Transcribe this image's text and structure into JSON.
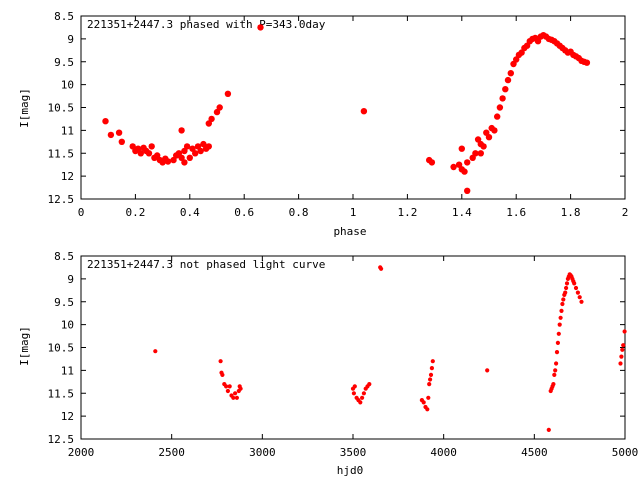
{
  "chart_data": [
    {
      "type": "scatter",
      "title": "221351+2447.3 phased with P=343.0day",
      "xlabel": "phase",
      "ylabel": "I[mag]",
      "xlim": [
        0,
        2
      ],
      "ylim": [
        12.5,
        8.5
      ],
      "y_inverted": true,
      "xticks": [
        "0",
        "0.2",
        "0.4",
        "0.6",
        "0.8",
        "1",
        "1.2",
        "1.4",
        "1.6",
        "1.8",
        "2"
      ],
      "yticks": [
        "8.5",
        "9",
        "9.5",
        "10",
        "10.5",
        "11",
        "11.5",
        "12",
        "12.5"
      ],
      "grid": false,
      "marker_color": "#ff0000",
      "series": [
        {
          "points": [
            [
              0.09,
              10.8
            ],
            [
              0.11,
              11.1
            ],
            [
              0.14,
              11.05
            ],
            [
              0.15,
              11.25
            ],
            [
              0.19,
              11.35
            ],
            [
              0.2,
              11.45
            ],
            [
              0.21,
              11.4
            ],
            [
              0.22,
              11.5
            ],
            [
              0.23,
              11.38
            ],
            [
              0.24,
              11.45
            ],
            [
              0.25,
              11.5
            ],
            [
              0.26,
              11.35
            ],
            [
              0.27,
              11.6
            ],
            [
              0.28,
              11.55
            ],
            [
              0.29,
              11.65
            ],
            [
              0.3,
              11.7
            ],
            [
              0.31,
              11.62
            ],
            [
              0.32,
              11.68
            ],
            [
              0.34,
              11.65
            ],
            [
              0.35,
              11.55
            ],
            [
              0.36,
              11.5
            ],
            [
              0.37,
              11.6
            ],
            [
              0.37,
              11.0
            ],
            [
              0.38,
              11.45
            ],
            [
              0.38,
              11.7
            ],
            [
              0.39,
              11.35
            ],
            [
              0.4,
              11.6
            ],
            [
              0.41,
              11.4
            ],
            [
              0.42,
              11.5
            ],
            [
              0.43,
              11.35
            ],
            [
              0.44,
              11.45
            ],
            [
              0.45,
              11.3
            ],
            [
              0.46,
              11.4
            ],
            [
              0.47,
              11.35
            ],
            [
              0.47,
              10.85
            ],
            [
              0.48,
              10.75
            ],
            [
              0.5,
              10.6
            ],
            [
              0.51,
              10.5
            ],
            [
              0.54,
              10.2
            ],
            [
              1.04,
              10.58
            ],
            [
              1.28,
              11.65
            ],
            [
              1.29,
              11.7
            ],
            [
              1.37,
              11.8
            ],
            [
              1.39,
              11.75
            ],
            [
              1.4,
              11.85
            ],
            [
              1.4,
              11.4
            ],
            [
              1.41,
              11.9
            ],
            [
              1.42,
              11.7
            ],
            [
              1.42,
              12.32
            ],
            [
              1.44,
              11.6
            ],
            [
              1.45,
              11.5
            ],
            [
              1.46,
              11.2
            ],
            [
              1.47,
              11.3
            ],
            [
              1.47,
              11.5
            ],
            [
              1.48,
              11.35
            ],
            [
              1.49,
              11.05
            ],
            [
              1.5,
              11.15
            ],
            [
              1.51,
              10.95
            ],
            [
              1.52,
              11.0
            ],
            [
              1.53,
              10.7
            ],
            [
              1.54,
              10.5
            ],
            [
              1.55,
              10.3
            ],
            [
              1.56,
              10.1
            ],
            [
              1.57,
              9.9
            ],
            [
              1.58,
              9.75
            ],
            [
              1.59,
              9.55
            ],
            [
              1.6,
              9.45
            ],
            [
              1.61,
              9.35
            ],
            [
              1.62,
              9.3
            ],
            [
              1.63,
              9.2
            ],
            [
              1.64,
              9.15
            ],
            [
              1.65,
              9.05
            ],
            [
              1.66,
              9.0
            ],
            [
              1.67,
              8.98
            ],
            [
              1.68,
              9.05
            ],
            [
              1.69,
              8.95
            ],
            [
              1.7,
              8.92
            ],
            [
              1.71,
              8.95
            ],
            [
              1.72,
              9.0
            ],
            [
              1.73,
              9.02
            ],
            [
              1.74,
              9.05
            ],
            [
              1.75,
              9.1
            ],
            [
              1.76,
              9.15
            ],
            [
              1.77,
              9.2
            ],
            [
              1.78,
              9.25
            ],
            [
              1.79,
              9.3
            ],
            [
              1.8,
              9.28
            ],
            [
              1.81,
              9.35
            ],
            [
              1.82,
              9.38
            ],
            [
              1.83,
              9.42
            ],
            [
              1.84,
              9.48
            ],
            [
              1.85,
              9.5
            ],
            [
              1.86,
              9.52
            ]
          ]
        }
      ],
      "legend_marker_point": [
        0.66,
        8.75
      ]
    },
    {
      "type": "scatter",
      "title": "221351+2447.3 not phased light curve",
      "xlabel": "hjd0",
      "ylabel": "I[mag]",
      "xlim": [
        2000,
        5000
      ],
      "ylim": [
        12.5,
        8.5
      ],
      "y_inverted": true,
      "xticks": [
        "2000",
        "2500",
        "3000",
        "3500",
        "4000",
        "4500",
        "5000"
      ],
      "yticks": [
        "8.5",
        "9",
        "9.5",
        "10",
        "10.5",
        "11",
        "11.5",
        "12",
        "12.5"
      ],
      "grid": false,
      "marker_color": "#ff0000",
      "series": [
        {
          "points": [
            [
              2410,
              10.58
            ],
            [
              2770,
              10.8
            ],
            [
              2775,
              11.05
            ],
            [
              2780,
              11.1
            ],
            [
              2790,
              11.3
            ],
            [
              2800,
              11.35
            ],
            [
              2810,
              11.45
            ],
            [
              2820,
              11.35
            ],
            [
              2830,
              11.55
            ],
            [
              2840,
              11.6
            ],
            [
              2850,
              11.5
            ],
            [
              2860,
              11.6
            ],
            [
              2870,
              11.45
            ],
            [
              2875,
              11.35
            ],
            [
              2880,
              11.4
            ],
            [
              3500,
              11.4
            ],
            [
              3505,
              11.5
            ],
            [
              3510,
              11.35
            ],
            [
              3520,
              11.6
            ],
            [
              3530,
              11.65
            ],
            [
              3540,
              11.7
            ],
            [
              3550,
              11.6
            ],
            [
              3560,
              11.5
            ],
            [
              3570,
              11.4
            ],
            [
              3580,
              11.35
            ],
            [
              3590,
              11.3
            ],
            [
              3650,
              8.75
            ],
            [
              3655,
              8.78
            ],
            [
              3880,
              11.65
            ],
            [
              3890,
              11.7
            ],
            [
              3900,
              11.8
            ],
            [
              3910,
              11.85
            ],
            [
              3915,
              11.6
            ],
            [
              3920,
              11.3
            ],
            [
              3925,
              11.2
            ],
            [
              3930,
              11.1
            ],
            [
              3935,
              10.95
            ],
            [
              3940,
              10.8
            ],
            [
              4240,
              11.0
            ],
            [
              4580,
              12.3
            ],
            [
              4590,
              11.45
            ],
            [
              4595,
              11.4
            ],
            [
              4600,
              11.35
            ],
            [
              4605,
              11.3
            ],
            [
              4610,
              11.1
            ],
            [
              4615,
              11.0
            ],
            [
              4620,
              10.85
            ],
            [
              4625,
              10.6
            ],
            [
              4630,
              10.4
            ],
            [
              4635,
              10.2
            ],
            [
              4640,
              10.0
            ],
            [
              4645,
              9.85
            ],
            [
              4650,
              9.7
            ],
            [
              4655,
              9.55
            ],
            [
              4660,
              9.45
            ],
            [
              4665,
              9.35
            ],
            [
              4670,
              9.3
            ],
            [
              4675,
              9.2
            ],
            [
              4680,
              9.1
            ],
            [
              4685,
              9.0
            ],
            [
              4690,
              8.95
            ],
            [
              4695,
              8.9
            ],
            [
              4700,
              8.92
            ],
            [
              4705,
              8.95
            ],
            [
              4710,
              9.0
            ],
            [
              4715,
              9.05
            ],
            [
              4720,
              9.1
            ],
            [
              4730,
              9.2
            ],
            [
              4740,
              9.3
            ],
            [
              4750,
              9.4
            ],
            [
              4760,
              9.5
            ],
            [
              4975,
              10.85
            ],
            [
              4980,
              10.7
            ],
            [
              4985,
              10.55
            ],
            [
              4990,
              10.45
            ],
            [
              4998,
              10.15
            ]
          ]
        }
      ]
    }
  ]
}
